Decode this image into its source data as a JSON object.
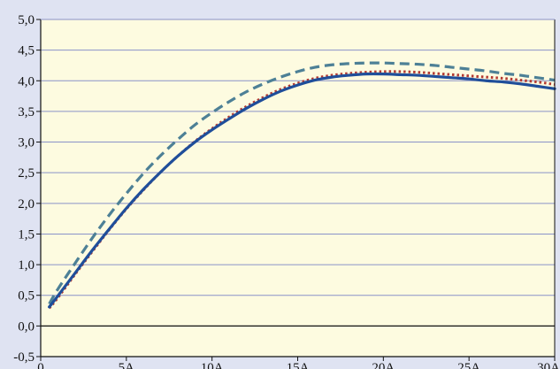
{
  "colors": {
    "page_background": "#dfe3f2",
    "plot_background": "#fdfbe0",
    "grid": "#8a92c8",
    "axis": "#111111",
    "tick_text": "#111111"
  },
  "chart_data": {
    "type": "line",
    "grid": "horizontal",
    "legend": "none",
    "title": "",
    "xlabel": "",
    "ylabel": "",
    "xlim": [
      0,
      30
    ],
    "ylim": [
      -0.5,
      5.0
    ],
    "x_ticks": [
      {
        "value": 0,
        "label": "0"
      },
      {
        "value": 5,
        "label": "5A"
      },
      {
        "value": 10,
        "label": "10A"
      },
      {
        "value": 15,
        "label": "15A"
      },
      {
        "value": 20,
        "label": "20A"
      },
      {
        "value": 25,
        "label": "25A"
      },
      {
        "value": 30,
        "label": "30A"
      }
    ],
    "y_ticks": [
      {
        "value": -0.5,
        "label": "-0,5"
      },
      {
        "value": 0.0,
        "label": "0,0"
      },
      {
        "value": 0.5,
        "label": "0,5"
      },
      {
        "value": 1.0,
        "label": "1,0"
      },
      {
        "value": 1.5,
        "label": "1,5"
      },
      {
        "value": 2.0,
        "label": "2,0"
      },
      {
        "value": 2.5,
        "label": "2,5"
      },
      {
        "value": 3.0,
        "label": "3,0"
      },
      {
        "value": 3.5,
        "label": "3,5"
      },
      {
        "value": 4.0,
        "label": "4,0"
      },
      {
        "value": 4.5,
        "label": "4,5"
      },
      {
        "value": 5.0,
        "label": "5,0"
      }
    ],
    "series": [
      {
        "style": "solid",
        "color": "#1f4e9a",
        "x": [
          0.5,
          1,
          2,
          3,
          4,
          5,
          6,
          7,
          8,
          9,
          10,
          11,
          12,
          13,
          14,
          15,
          16,
          17,
          18,
          19,
          20,
          21,
          22,
          23,
          24,
          25,
          26,
          27,
          28,
          29,
          30
        ],
        "y": [
          0.31,
          0.49,
          0.86,
          1.23,
          1.58,
          1.92,
          2.23,
          2.51,
          2.77,
          3.0,
          3.2,
          3.38,
          3.55,
          3.7,
          3.83,
          3.93,
          4.01,
          4.06,
          4.09,
          4.11,
          4.11,
          4.1,
          4.09,
          4.07,
          4.05,
          4.03,
          4.0,
          3.98,
          3.95,
          3.91,
          3.87
        ]
      },
      {
        "style": "dotted",
        "color": "#b33a32",
        "x": [
          0.5,
          1,
          2,
          3,
          4,
          5,
          6,
          7,
          8,
          9,
          10,
          11,
          12,
          13,
          14,
          15,
          16,
          17,
          18,
          19,
          20,
          21,
          22,
          23,
          24,
          25,
          26,
          27,
          28,
          29,
          30
        ],
        "y": [
          0.29,
          0.46,
          0.84,
          1.21,
          1.57,
          1.91,
          2.22,
          2.51,
          2.77,
          3.01,
          3.22,
          3.41,
          3.58,
          3.73,
          3.86,
          3.96,
          4.04,
          4.09,
          4.12,
          4.14,
          4.15,
          4.15,
          4.14,
          4.12,
          4.1,
          4.08,
          4.06,
          4.04,
          4.01,
          3.98,
          3.94
        ]
      },
      {
        "style": "dashed",
        "color": "#4d8096",
        "x": [
          0.5,
          1,
          2,
          3,
          4,
          5,
          6,
          7,
          8,
          9,
          10,
          11,
          12,
          13,
          14,
          15,
          16,
          17,
          18,
          19,
          20,
          21,
          22,
          23,
          24,
          25,
          26,
          27,
          28,
          29,
          30
        ],
        "y": [
          0.36,
          0.6,
          1.02,
          1.43,
          1.81,
          2.16,
          2.49,
          2.78,
          3.04,
          3.28,
          3.48,
          3.66,
          3.82,
          3.95,
          4.06,
          4.15,
          4.22,
          4.26,
          4.28,
          4.29,
          4.29,
          4.28,
          4.27,
          4.25,
          4.22,
          4.19,
          4.16,
          4.12,
          4.09,
          4.05,
          4.01
        ]
      }
    ]
  }
}
